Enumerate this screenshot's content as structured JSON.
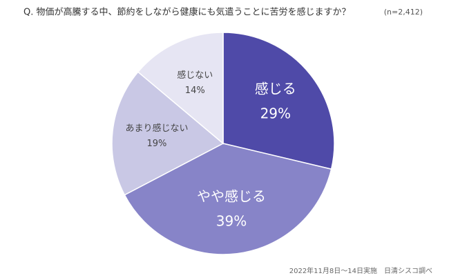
{
  "chart_data": {
    "type": "pie",
    "title": "Q. 物価が高騰する中、節約をしながら健康にも気遣うことに苦労を感じますか？",
    "subtitle": "(n=2,412)",
    "source": "2022年11月8日～14日実施　日清シスコ調べ",
    "categories": [
      "感じる",
      "やや感じる",
      "あまり感じない",
      "感じない"
    ],
    "values": [
      29,
      39,
      19,
      14
    ],
    "value_labels": [
      "29%",
      "39%",
      "19%",
      "14%"
    ],
    "colors": [
      "#4f4aa8",
      "#8784c8",
      "#c9c8e5",
      "#e6e5f3"
    ]
  }
}
